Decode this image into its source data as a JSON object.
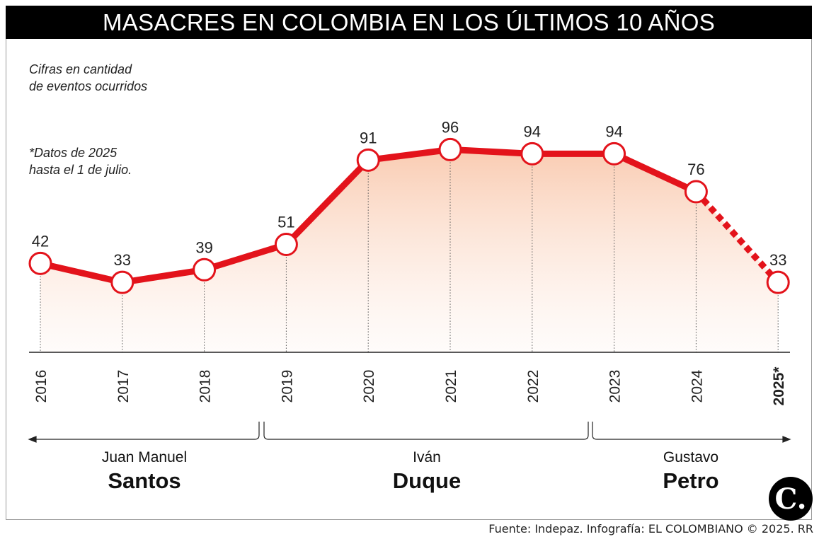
{
  "title": "MASACRES EN COLOMBIA EN LOS ÚLTIMOS 10 AÑOS",
  "notes": {
    "units_line1": "Cifras en cantidad",
    "units_line2": "de eventos ocurridos",
    "data_line1": "*Datos de 2025",
    "data_line2": "hasta el 1 de julio."
  },
  "presidents": [
    {
      "first": "Juan Manuel",
      "last": "Santos"
    },
    {
      "first": "Iván",
      "last": "Duque"
    },
    {
      "first": "Gustavo",
      "last": "Petro"
    }
  ],
  "source": "Fuente: Indepaz. Infografía: EL COLOMBIANO © 2025. RR",
  "logo": "C.",
  "colors": {
    "line": "#e3131b",
    "fill_top": "#f9c9ae",
    "title_bg": "#000000"
  },
  "chart_data": {
    "type": "line",
    "categories": [
      "2016",
      "2017",
      "2018",
      "2019",
      "2020",
      "2021",
      "2022",
      "2023",
      "2024",
      "2025*"
    ],
    "values": [
      42,
      33,
      39,
      51,
      91,
      96,
      94,
      94,
      76,
      33
    ],
    "data_labels": [
      "42",
      "33",
      "39",
      "51",
      "91",
      "96",
      "94",
      "94",
      "76",
      "33"
    ],
    "last_segment_style": "dashed",
    "bold_categories": [
      "2025*"
    ],
    "ylim": [
      0,
      96
    ],
    "grid": false
  }
}
